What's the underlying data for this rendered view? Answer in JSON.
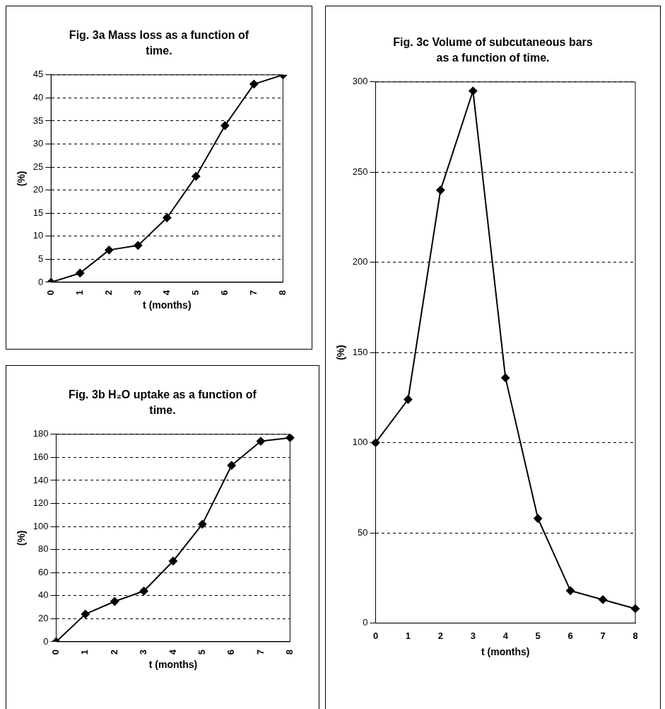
{
  "chart_data": [
    {
      "type": "line",
      "title": "Fig. 3a Mass loss as a function of time.",
      "xlabel": "t (months)",
      "ylabel": "(%)",
      "categories": [
        "0",
        "1",
        "2",
        "3",
        "4",
        "5",
        "6",
        "7",
        "8"
      ],
      "values": [
        0,
        2,
        7,
        8,
        14,
        23,
        34,
        43,
        45
      ],
      "color": "#000000",
      "ylim": [
        0,
        45
      ],
      "yticks": [
        0,
        5,
        10,
        15,
        20,
        25,
        30,
        35,
        40,
        45
      ],
      "grid": "y",
      "marker": "diamond"
    },
    {
      "type": "line",
      "title": "Fig. 3b H₂O uptake as a function of time.",
      "xlabel": "t (months)",
      "ylabel": "(%)",
      "categories": [
        "0",
        "1",
        "2",
        "3",
        "4",
        "5",
        "6",
        "7",
        "8"
      ],
      "values": [
        0,
        24,
        35,
        44,
        70,
        102,
        153,
        174,
        177
      ],
      "color": "#000000",
      "ylim": [
        0,
        180
      ],
      "yticks": [
        0,
        20,
        40,
        60,
        80,
        100,
        120,
        140,
        160,
        180
      ],
      "grid": "y",
      "marker": "diamond"
    },
    {
      "type": "line",
      "title": "Fig. 3c Volume of subcutaneous bars as a function of time.",
      "xlabel": "t (months)",
      "ylabel": "(%)",
      "categories": [
        "0",
        "1",
        "2",
        "3",
        "4",
        "5",
        "6",
        "7",
        "8"
      ],
      "values": [
        100,
        124,
        240,
        295,
        136,
        58,
        18,
        13,
        8
      ],
      "color": "#000000",
      "ylim": [
        0,
        300
      ],
      "yticks": [
        0,
        50,
        100,
        150,
        200,
        250,
        300
      ],
      "grid": "y",
      "marker": "diamond"
    }
  ]
}
